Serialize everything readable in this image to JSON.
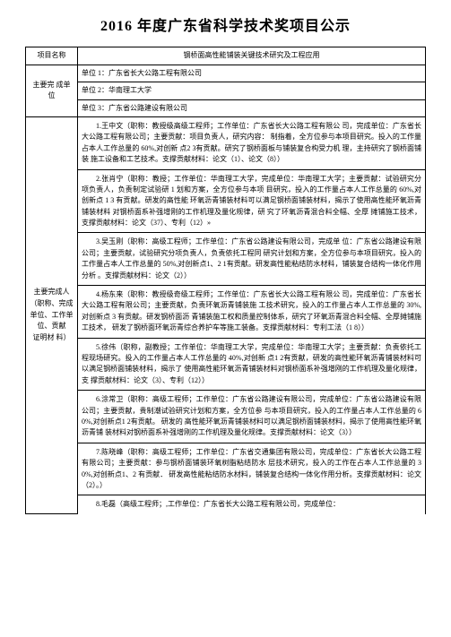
{
  "title": "2016 年度广东省科学技术奖项目公示",
  "row_project_label": "项目名称",
  "row_project_value": "钢桥面高性能铺装关键技术研究及工程应用",
  "row_org_label": "主要完 成单位",
  "orgs": {
    "org1": "单位 1：广东省长大公路工程有限公司",
    "org2": "单位 2：华南理工大学",
    "org3": "单位 3：广东省公路建设有限公司"
  },
  "row_people_label": "主要完成人（职称、完成单位、工作单 位、贡献\n证明材 料）",
  "people": {
    "p1": "1.王中文（职称：教授级高级工程师；工作单位：广东省长大公路工程有限公 司，完成单位：广东省长大公路工程有限公司；主要贡献：项目负责人，研究内容： 制指着，全方位参与本项目研究。投入的工作量占本人工作总量的 60%,对创新 点2 3有贡献。研究了钢桥面板与铺装复合构受力机 理，主持研究了钢桥面铺装 施工设备和工艺技术。支撑贡献材料：论文（1）、论文（8））",
    "p2": "2.张肖宁（职称：教授；工作单位：华南理工大学，完成单位：华南理工大学；主要贡献：试验研究分项负责人，负责制定试验研 1 划和方案，全方位参与本项 目研究，投入的工作量占本人工作总量的 60%,对创新点 1 3 有贡献。研发的高性能 环氧沥青铺装材料可以满足钢桥面铺装材料，揭示了使用高性能环氧沥青铺装材料 对钢桥面系补强增刚的工作机理及量化规律，研 究了环氧沥青混合料全幅、全厚 摊铺施工技术，支撑贡献材料：论文（37）、专利（12）»",
    "p3": "3.吴玉刚（职称：高级工程师；工作单位：广东省公路建设有限公司，完成单 位：广东省公路建设有限公司；主要贡献，试验研究分项负责人，负责依托工程同 研究计划和方案，全方位参与本项目研究，投入的工作量占本人工作总量的 50%,对创新点1、2 1有贡献。研发高性能粘结防水材料，铺装复合结构一体化作用分析 。支撑贡献材料：论文（2））",
    "p4": "4.杨东来（职称：教授级奇级工程师；工作单位：广东省长大公路工程有限公 司，完成单位：广东省长大公路工程有限公司；主要贡献，负责环氧沥青铺装施 工技术研究，投入的工作量占本人工作总量的 30%,对创新点 3 有贡献。研发钢桥面沥 青铺装施工权和质量控制体系，研究了环氧沥青混合料全幅、全厚摊铺施工技术， 研发了钢桥面环氧沥青综合养护车等施工装备。支撑贡献材料：专利工法（1 8））",
    "p5": "5.徐伟（职称，副教授；工作单位：华南理工大学，完成单位：华南理工大学；主要贡献：负责依托工程现场研究。投入的工作量占本人工作总量的 40%,对创新 点1 2有贡献，研发的高性能环氧沥青铺装材料可以满足钢桥面铺装材料，揭示了 使用高性能环氧沥青铺装材料对钢桥面系补强增刚的工作机理及量化规律，支 撑贡献材料：论文（3）、专利（12））",
    "p6": "6.涂常卫（职称：高级工程师；工作单位：广东省公路建设有限公司，完成单位：广东省公路建设有限公司；主要贡献，贵制潮试验研究计划和方案，全方位参 与本项目研究，投入的工作量占本人工作总量的 60%,对创新点1 2有贡献。 研发的 高性能环氧沥青铺装材料可以满足钢桥面铺装材料，揭示了使用高性能环氧沥青铺 装材料对钢桥面系补强增刚的工作机理及量化规律。支撑贡献材料：论文（3））",
    "p7": "7.陈晓峰（职称：高级工程师；工作单位：广东省交通集团有限公司，完成单位：广东省长大公路工程有限公司；主要贡献：参与钢桥面铺装环氧树脂粘结防水 层技术研究，投入的工作在占本人工作总量的 30%,对创新点1、2 有贡献． 研发高性能粘结防水材料，铺装复合结构一体化作用分析。支撑贡献材料：论文（2）。）",
    "p8": "8.毛磊（高级工程师；,工作单位：广东省长大公路工程有限公司，完成单位："
  }
}
